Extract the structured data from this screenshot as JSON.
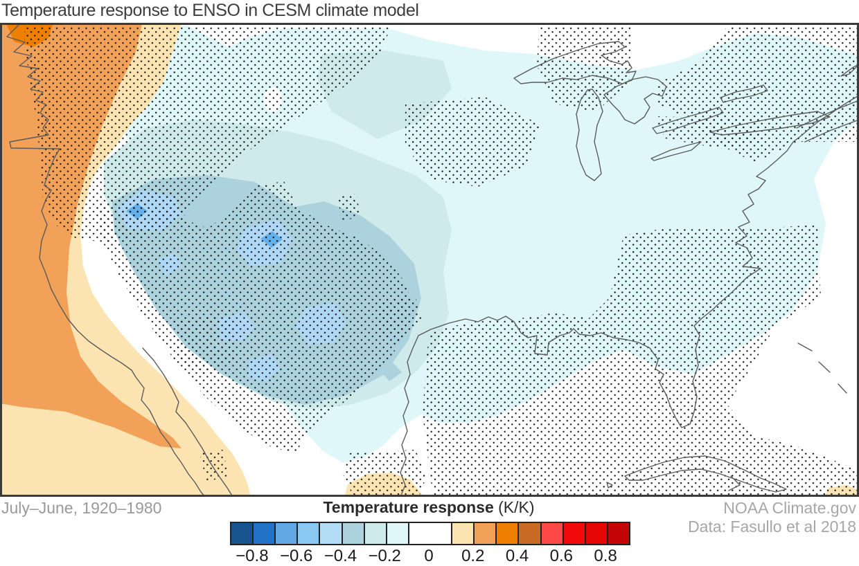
{
  "title": "Temperature response to ENSO in CESM climate model",
  "footer": {
    "period_label": "July–June, 1920–1980",
    "attribution_line1": "NOAA Climate.gov",
    "attribution_line2": "Data: Fasullo et al 2018"
  },
  "colorbar": {
    "title_bold": "Temperature response",
    "title_unit": " (K/K)",
    "cells": [
      {
        "color": "#17548e",
        "span": 1
      },
      {
        "color": "#2273c8",
        "span": 1
      },
      {
        "color": "#61a8e4",
        "span": 1
      },
      {
        "color": "#8ac7f1",
        "span": 1
      },
      {
        "color": "#b3dcf7",
        "span": 1
      },
      {
        "color": "#abd2dd",
        "span": 1
      },
      {
        "color": "#cfeaea",
        "span": 1
      },
      {
        "color": "#dff7f9",
        "span": 1
      },
      {
        "color": "#ffffff",
        "span": 2
      },
      {
        "color": "#fce4b2",
        "span": 1
      },
      {
        "color": "#f2a159",
        "span": 1
      },
      {
        "color": "#ee7f00",
        "span": 1
      },
      {
        "color": "#c96b24",
        "span": 1
      },
      {
        "color": "#fd4a48",
        "span": 1
      },
      {
        "color": "#f30a0a",
        "span": 1
      },
      {
        "color": "#e60505",
        "span": 1
      },
      {
        "color": "#c30505",
        "span": 1
      }
    ],
    "total_units": 18,
    "ticks": [
      {
        "label": "−0.8",
        "unit": 1
      },
      {
        "label": "−0.6",
        "unit": 3
      },
      {
        "label": "−0.4",
        "unit": 5
      },
      {
        "label": "−0.2",
        "unit": 7
      },
      {
        "label": "0",
        "unit": 9
      },
      {
        "label": "0.2",
        "unit": 11
      },
      {
        "label": "0.4",
        "unit": 13
      },
      {
        "label": "0.6",
        "unit": 15
      },
      {
        "label": "0.8",
        "unit": 17
      }
    ]
  },
  "palette": {
    "white": "#ffffff",
    "cyan_pale": "#dff7f9",
    "cyan_mid": "#cfeaea",
    "steel": "#abd2dd",
    "sky": "#aed8f5",
    "blue_bright": "#64b0ea",
    "cream": "#fce4b2",
    "orange_mid": "#f2a159",
    "orange_bright": "#ee7f00",
    "coast_stroke": "#5a5a5a",
    "map_border": "#3a3a3a",
    "stipple_dot": "#111111"
  },
  "chart_data": {
    "type": "filled-contour-map",
    "title": "Temperature response to ENSO in CESM climate model",
    "variable": "Temperature response",
    "units": "K/K",
    "region_shown": "North America",
    "period": "July–June, 1920–1980",
    "source": [
      "NOAA Climate.gov",
      "Data: Fasullo et al 2018"
    ],
    "colorbar": {
      "range": [
        -0.9,
        0.9
      ],
      "contour_interval": 0.1,
      "tick_values": [
        -0.8,
        -0.6,
        -0.4,
        -0.2,
        0,
        0.2,
        0.4,
        0.6,
        0.8
      ],
      "zero_band": [
        -0.1,
        0.1
      ],
      "colors_low_to_high": [
        "#17548e",
        "#2273c8",
        "#61a8e4",
        "#8ac7f1",
        "#b3dcf7",
        "#abd2dd",
        "#cfeaea",
        "#dff7f9",
        "#ffffff",
        "#fce4b2",
        "#f2a159",
        "#ee7f00",
        "#c96b24",
        "#fd4a48",
        "#f30a0a",
        "#e60505",
        "#c30505"
      ]
    },
    "stippling_present": true,
    "features": [
      {
        "name": "central-us-cooling-core",
        "approx_value_range": [
          -0.5,
          -0.3
        ],
        "location": "Great Plains / central United States",
        "stippled": true
      },
      {
        "name": "peak-cooling-spots",
        "approx_value_range": [
          -0.7,
          -0.5
        ],
        "location": "small pockets inside central core"
      },
      {
        "name": "broad-weak-cooling",
        "approx_value_range": [
          -0.2,
          -0.1
        ],
        "location": "most of eastern North America and Gulf coast",
        "stippled": "partially"
      },
      {
        "name": "northeast-pacific-warming",
        "approx_value_range": [
          0.2,
          0.4
        ],
        "location": "Pacific coast / Gulf of Alaska",
        "stippled": true
      },
      {
        "name": "weak-warming-fringe",
        "approx_value_range": [
          0.1,
          0.2
        ],
        "location": "band offshore of west coast and small Gulf/Caribbean patches"
      }
    ]
  }
}
